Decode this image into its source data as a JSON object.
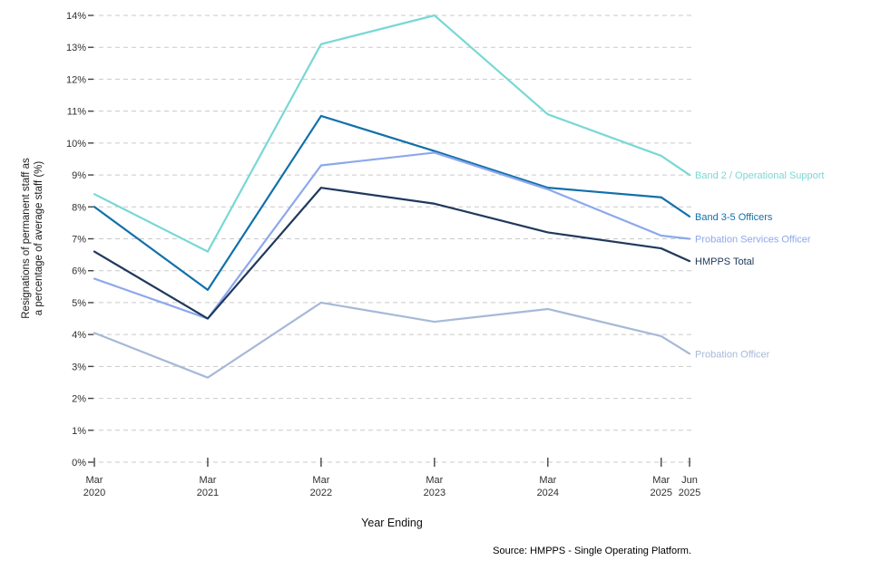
{
  "chart_data": {
    "type": "line",
    "title": "",
    "xlabel": "Year Ending",
    "ylabel_lines": [
      "Resignations of permanent staff as",
      "a percentage of average staff (%)"
    ],
    "ylim": [
      0,
      14
    ],
    "y_ticks": [
      0,
      1,
      2,
      3,
      4,
      5,
      6,
      7,
      8,
      9,
      10,
      11,
      12,
      13,
      14
    ],
    "y_tick_suffix": "%",
    "grid": "horizontal-dashed",
    "legend_position": "right-of-line-ends",
    "x_labels": [
      {
        "line1": "Mar",
        "line2": "2020",
        "month": 0
      },
      {
        "line1": "Mar",
        "line2": "2021",
        "month": 12
      },
      {
        "line1": "Mar",
        "line2": "2022",
        "month": 24
      },
      {
        "line1": "Mar",
        "line2": "2023",
        "month": 36
      },
      {
        "line1": "Mar",
        "line2": "2024",
        "month": 48
      },
      {
        "line1": "Mar",
        "line2": "2025",
        "month": 60
      },
      {
        "line1": "Jun",
        "line2": "2025",
        "month": 63
      }
    ],
    "series": [
      {
        "name": "Band 2 / Operational Support",
        "color": "#79D8D5",
        "values": [
          8.4,
          6.6,
          13.1,
          14.0,
          10.9,
          9.6,
          9.0
        ]
      },
      {
        "name": "Band 3-5 Officers",
        "color": "#1170AA",
        "values": [
          8.0,
          5.4,
          10.85,
          9.75,
          8.6,
          8.3,
          7.7
        ]
      },
      {
        "name": "Probation Services Officer",
        "color": "#8CA8EC",
        "values": [
          5.75,
          4.5,
          9.3,
          9.7,
          8.55,
          7.1,
          7.0
        ]
      },
      {
        "name": "HMPPS Total",
        "color": "#20395C",
        "values": [
          6.6,
          4.5,
          8.6,
          8.1,
          7.2,
          6.7,
          6.3
        ]
      },
      {
        "name": "Probation Officer",
        "color": "#A6B9D8",
        "values": [
          4.05,
          2.65,
          5.0,
          4.4,
          4.8,
          3.95,
          3.4
        ]
      }
    ],
    "style": {
      "grid_color": "#C9C9C9",
      "tick_color": "#444444",
      "text_color": "#303030",
      "axis_title_color": "#1a1a1a"
    }
  },
  "source": "Source: HMPPS - Single Operating Platform."
}
